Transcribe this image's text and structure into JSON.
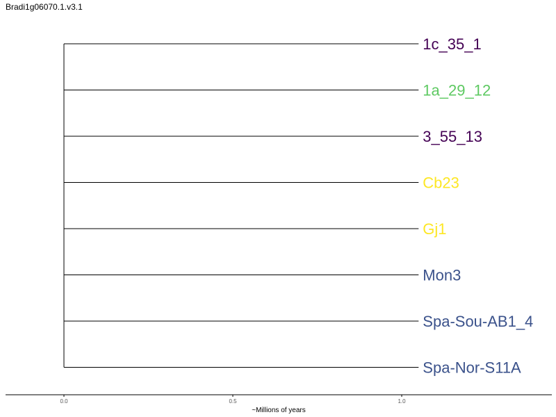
{
  "title": "Bradi1g06070.1.v3.1",
  "axis": {
    "label": "~Millions of years",
    "ticks": [
      {
        "value": 0.0,
        "label": "0.0"
      },
      {
        "value": 0.5,
        "label": "0.5"
      },
      {
        "value": 1.0,
        "label": "1.0"
      }
    ]
  },
  "chart_data": {
    "type": "dendrogram",
    "orientation": "left-to-right",
    "root_time": 0.0,
    "tips": [
      {
        "label": "1c_35_1",
        "branch_length": 1.05,
        "color": "#440154"
      },
      {
        "label": "1a_29_12",
        "branch_length": 1.05,
        "color": "#5ec962"
      },
      {
        "label": "3_55_13",
        "branch_length": 1.05,
        "color": "#440154"
      },
      {
        "label": "Cb23",
        "branch_length": 1.05,
        "color": "#fde725"
      },
      {
        "label": "Gj1",
        "branch_length": 1.05,
        "color": "#fde725"
      },
      {
        "label": "Mon3",
        "branch_length": 1.05,
        "color": "#3b528b"
      },
      {
        "label": "Spa-Sou-AB1_4",
        "branch_length": 1.05,
        "color": "#3b528b"
      },
      {
        "label": "Spa-Nor-S11A",
        "branch_length": 1.05,
        "color": "#3b528b"
      }
    ]
  }
}
